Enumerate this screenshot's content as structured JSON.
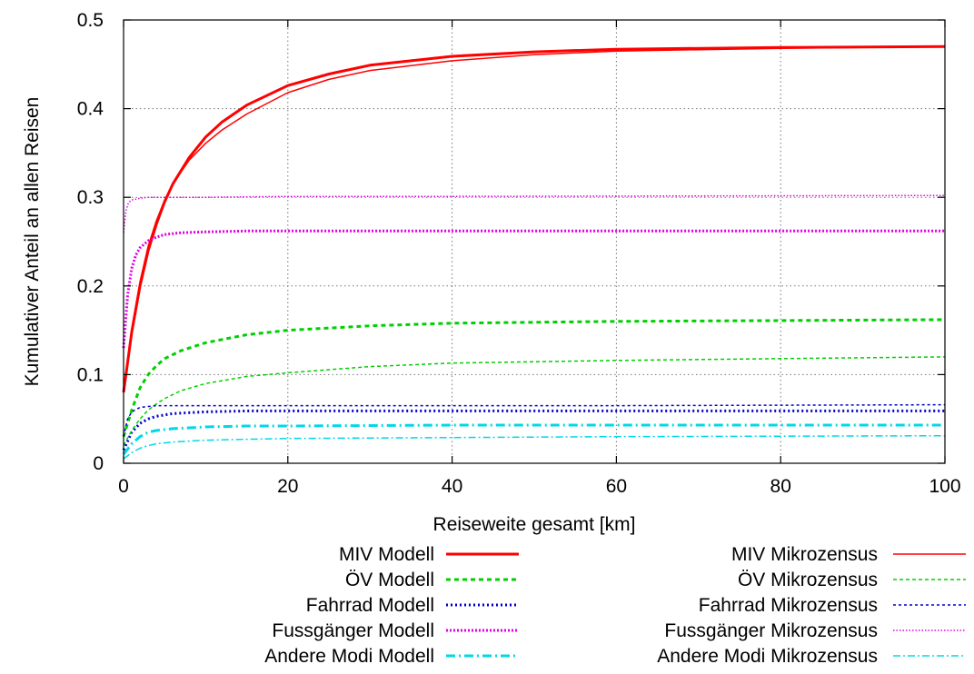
{
  "chart_data": {
    "type": "line",
    "title": "",
    "xlabel": "Reiseweite gesamt [km]",
    "ylabel": "Kumulativer Anteil an allen Reisen",
    "xlim": [
      0,
      100
    ],
    "ylim": [
      0,
      0.5
    ],
    "xticks": [
      0,
      20,
      40,
      60,
      80,
      100
    ],
    "yticks": [
      0,
      0.1,
      0.2,
      0.3,
      0.4,
      0.5
    ],
    "ytick_labels": [
      "0",
      "0.1",
      "0.2",
      "0.3",
      "0.4",
      "0.5"
    ],
    "grid": true,
    "legend_position": "bottom",
    "series": [
      {
        "name": "MIV Modell",
        "color": "#ff0000",
        "dash": "solid",
        "width": 3,
        "x": [
          0,
          1,
          2,
          3,
          4,
          5,
          6,
          8,
          10,
          12,
          15,
          20,
          25,
          30,
          40,
          50,
          60,
          80,
          100
        ],
        "y": [
          0.08,
          0.148,
          0.2,
          0.24,
          0.27,
          0.295,
          0.315,
          0.345,
          0.368,
          0.385,
          0.404,
          0.426,
          0.439,
          0.449,
          0.459,
          0.464,
          0.467,
          0.469,
          0.47
        ]
      },
      {
        "name": "ÖV Modell",
        "color": "#00d000",
        "dash": "5 4",
        "width": 3,
        "x": [
          0,
          1,
          2,
          3,
          4,
          5,
          7,
          10,
          15,
          20,
          30,
          40,
          60,
          80,
          100
        ],
        "y": [
          0.03,
          0.06,
          0.085,
          0.1,
          0.11,
          0.118,
          0.127,
          0.136,
          0.145,
          0.15,
          0.155,
          0.158,
          0.16,
          0.161,
          0.162
        ]
      },
      {
        "name": "Fahrrad Modell",
        "color": "#0000d0",
        "dash": "2 3",
        "width": 3,
        "x": [
          0,
          1,
          2,
          3,
          4,
          6,
          10,
          15,
          20,
          40,
          60,
          100
        ],
        "y": [
          0.015,
          0.035,
          0.045,
          0.05,
          0.053,
          0.056,
          0.058,
          0.059,
          0.059,
          0.059,
          0.059,
          0.059
        ]
      },
      {
        "name": "Fussgänger Modell",
        "color": "#e000e0",
        "dash": "2 2",
        "width": 3,
        "x": [
          0,
          0.5,
          1,
          1.5,
          2,
          3,
          4,
          5,
          7,
          10,
          15,
          20,
          40,
          100
        ],
        "y": [
          0.13,
          0.19,
          0.22,
          0.235,
          0.243,
          0.251,
          0.255,
          0.258,
          0.26,
          0.261,
          0.262,
          0.262,
          0.262,
          0.262
        ]
      },
      {
        "name": "Andere Modi Modell",
        "color": "#00d8e8",
        "dash": "10 4 2 4",
        "width": 3,
        "x": [
          0,
          1,
          2,
          3,
          4,
          6,
          8,
          10,
          15,
          20,
          40,
          60,
          100
        ],
        "y": [
          0.01,
          0.022,
          0.03,
          0.035,
          0.037,
          0.039,
          0.04,
          0.041,
          0.042,
          0.042,
          0.043,
          0.043,
          0.043
        ]
      },
      {
        "name": "MIV Mikrozensus",
        "color": "#ff0000",
        "dash": "solid",
        "width": 1.5,
        "x": [
          0,
          1,
          2,
          3,
          4,
          5,
          6,
          8,
          10,
          12,
          15,
          20,
          25,
          30,
          40,
          50,
          60,
          80,
          100
        ],
        "y": [
          0.08,
          0.152,
          0.205,
          0.245,
          0.274,
          0.297,
          0.315,
          0.342,
          0.361,
          0.376,
          0.394,
          0.418,
          0.433,
          0.443,
          0.454,
          0.461,
          0.465,
          0.468,
          0.47
        ]
      },
      {
        "name": "ÖV Mikrozensus",
        "color": "#00d000",
        "dash": "4 3",
        "width": 1.5,
        "x": [
          0,
          1,
          2,
          3,
          4,
          5,
          7,
          10,
          15,
          20,
          30,
          40,
          60,
          80,
          100
        ],
        "y": [
          0.02,
          0.037,
          0.05,
          0.06,
          0.067,
          0.073,
          0.082,
          0.09,
          0.098,
          0.102,
          0.109,
          0.113,
          0.116,
          0.118,
          0.12
        ]
      },
      {
        "name": "Fahrrad Mikrozensus",
        "color": "#0000d0",
        "dash": "3 3",
        "width": 1.5,
        "x": [
          0,
          0.5,
          1,
          2,
          3,
          4,
          6,
          10,
          20,
          40,
          60,
          100
        ],
        "y": [
          0.03,
          0.05,
          0.058,
          0.063,
          0.064,
          0.065,
          0.065,
          0.065,
          0.065,
          0.065,
          0.065,
          0.066
        ]
      },
      {
        "name": "Fussgänger Mikrozensus",
        "color": "#e000e0",
        "dash": "1.5 2",
        "width": 1.5,
        "x": [
          0,
          0.3,
          0.6,
          1,
          1.5,
          2,
          3,
          5,
          10,
          20,
          40,
          100
        ],
        "y": [
          0.26,
          0.285,
          0.294,
          0.297,
          0.298,
          0.299,
          0.3,
          0.3,
          0.3,
          0.301,
          0.301,
          0.302
        ]
      },
      {
        "name": "Andere Modi Mikrozensus",
        "color": "#00d8e8",
        "dash": "8 3 2 3",
        "width": 1.5,
        "x": [
          0,
          1,
          2,
          3,
          4,
          6,
          8,
          10,
          15,
          20,
          40,
          60,
          100
        ],
        "y": [
          0.005,
          0.012,
          0.017,
          0.02,
          0.022,
          0.024,
          0.025,
          0.026,
          0.027,
          0.028,
          0.029,
          0.03,
          0.031
        ]
      }
    ]
  }
}
